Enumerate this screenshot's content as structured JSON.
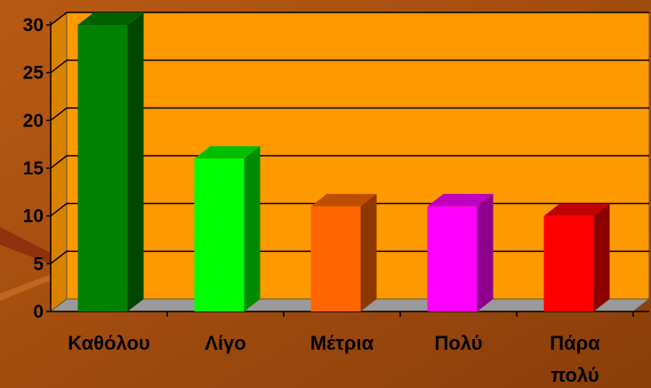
{
  "colors": {
    "background": "#B85A14",
    "background_dark": "#8A3E0A",
    "plot_wall": "#FF9900",
    "plot_floor": "#9A9A9A",
    "gridline": "#000000",
    "label_text": "#000000"
  },
  "chart_data": {
    "type": "bar",
    "style": "3d-column",
    "title": "",
    "xlabel": "",
    "ylabel": "",
    "categories": [
      "Καθόλου",
      "Λίγο",
      "Μέτρια",
      "Πολύ",
      "Πάρα πολύ"
    ],
    "values": [
      30,
      16,
      11,
      11,
      10
    ],
    "bar_colors": [
      "#008000",
      "#00FF00",
      "#FF6600",
      "#FF00FF",
      "#FF0000"
    ],
    "yticks": [
      0,
      5,
      10,
      15,
      20,
      25,
      30
    ],
    "ylim": [
      0,
      30
    ],
    "grid": true,
    "legend": "none"
  }
}
